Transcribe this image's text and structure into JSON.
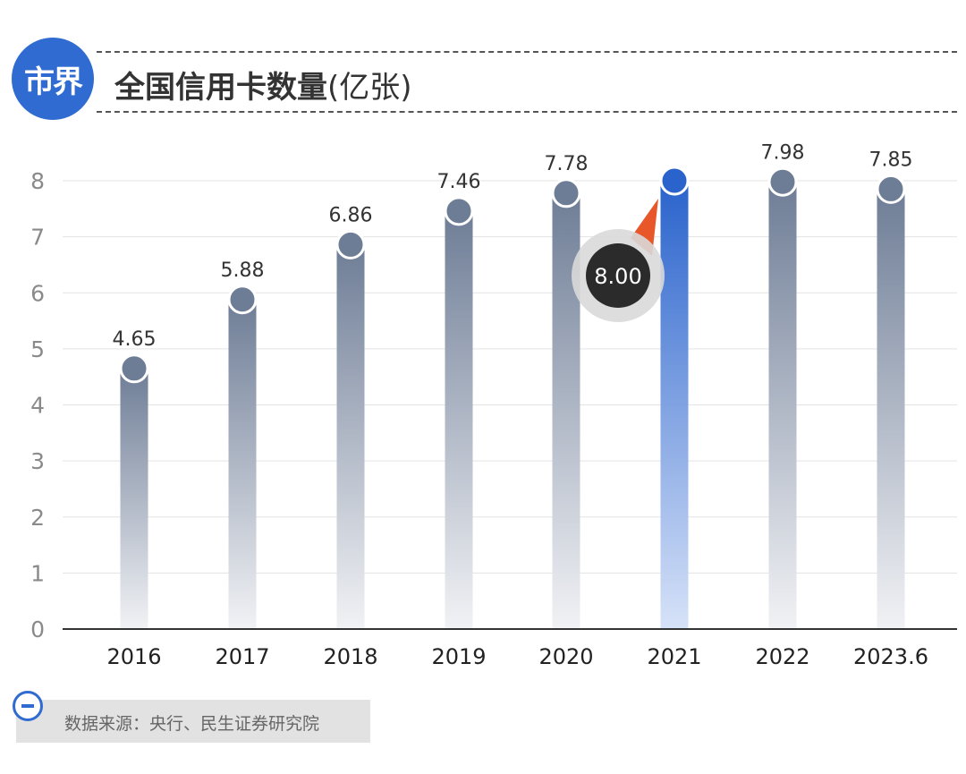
{
  "header": {
    "logo_text": "市界",
    "title": "全国信用卡数量",
    "unit": "(亿张)"
  },
  "chart_data": {
    "type": "bar",
    "title": "全国信用卡数量(亿张)",
    "categories": [
      "2016",
      "2017",
      "2018",
      "2019",
      "2020",
      "2021",
      "2022",
      "2023.6"
    ],
    "values": [
      4.65,
      5.88,
      6.86,
      7.46,
      7.78,
      8.0,
      7.98,
      7.85
    ],
    "value_labels": [
      "4.65",
      "5.88",
      "6.86",
      "7.46",
      "7.78",
      "8.00",
      "7.98",
      "7.85"
    ],
    "yticks": [
      "0",
      "1",
      "2",
      "3",
      "4",
      "5",
      "6",
      "7",
      "8"
    ],
    "ylim": [
      0,
      8
    ],
    "grid": true,
    "highlight_index": 5,
    "highlight_label": "8.00",
    "colors": {
      "bar": "#6e7d96",
      "highlight": "#2a63cc",
      "callout": "#2b2b2b",
      "arrow": "#e8572a"
    }
  },
  "footer": {
    "source": "数据来源：央行、民生证券研究院"
  }
}
